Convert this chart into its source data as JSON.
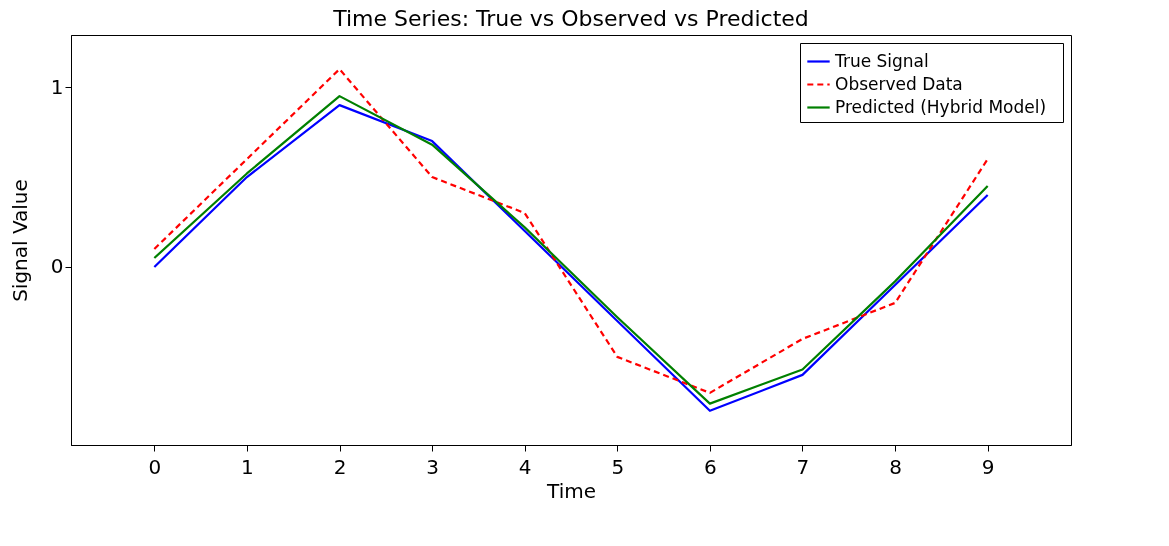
{
  "chart_data": {
    "type": "line",
    "title": "Time Series: True vs Observed vs Predicted",
    "xlabel": "Time",
    "ylabel": "Signal Value",
    "x": [
      0,
      1,
      2,
      3,
      4,
      5,
      6,
      7,
      8,
      9
    ],
    "series": [
      {
        "name": "True Signal",
        "color": "#0000ff",
        "line_style": "solid",
        "values": [
          0,
          0.5,
          0.9,
          0.7,
          0.2,
          -0.3,
          -0.8,
          -0.6,
          -0.1,
          0.4
        ]
      },
      {
        "name": "Observed Data",
        "color": "#ff0000",
        "line_style": "dashed",
        "values": [
          0.1,
          0.6,
          1.1,
          0.5,
          0.3,
          -0.5,
          -0.7,
          -0.4,
          -0.2,
          0.6
        ]
      },
      {
        "name": "Predicted  (Hybrid  Model)",
        "color": "#008000",
        "line_style": "solid",
        "values": [
          0.05,
          0.52,
          0.95,
          0.68,
          0.22,
          -0.28,
          -0.76,
          -0.57,
          -0.08,
          0.45
        ]
      }
    ],
    "xlim": [
      -0.9,
      9.9
    ],
    "ylim": [
      -0.99,
      1.29
    ],
    "xticks": [
      0,
      1,
      2,
      3,
      4,
      5,
      6,
      7,
      8,
      9
    ],
    "yticks": [
      0,
      1
    ],
    "grid": false,
    "legend": "top right",
    "marker": "none"
  }
}
